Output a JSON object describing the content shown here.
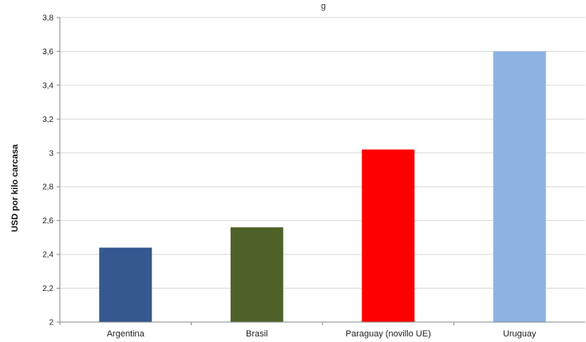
{
  "chart_data": {
    "type": "bar",
    "title": "g",
    "xlabel": "",
    "ylabel": "USD por kilo carcasa",
    "ylim": [
      2,
      3.8
    ],
    "yticks": [
      "2",
      "2,2",
      "2,4",
      "2,6",
      "2,8",
      "3",
      "3,2",
      "3,4",
      "3,6",
      "3,8"
    ],
    "categories": [
      "Argentina",
      "Brasil",
      "Paraguay (novillo UE)",
      "Uruguay"
    ],
    "values": [
      2.44,
      2.56,
      3.02,
      3.6
    ],
    "colors": [
      "#35598f",
      "#4e6228",
      "#ff0000",
      "#8db3e2"
    ],
    "grid": true,
    "legend": "none"
  }
}
